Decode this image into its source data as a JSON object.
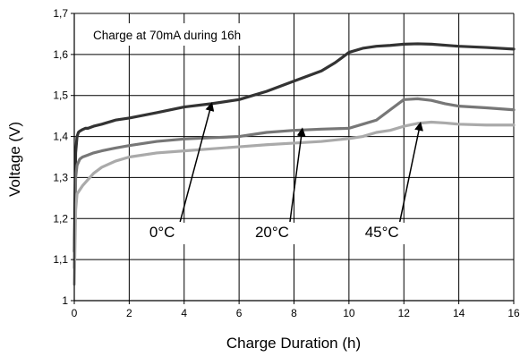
{
  "chart_data": {
    "type": "line",
    "xlabel": "Charge Duration  (h)",
    "ylabel": "Voltage (V)",
    "xlim": [
      0,
      16
    ],
    "ylim": [
      1.0,
      1.7
    ],
    "xticks": [
      0,
      2,
      4,
      6,
      8,
      10,
      12,
      14,
      16
    ],
    "yticks": [
      1.0,
      1.1,
      1.2,
      1.3,
      1.4,
      1.5,
      1.6,
      1.7
    ],
    "xtick_labels": [
      "0",
      "2",
      "4",
      "6",
      "8",
      "10",
      "12",
      "14",
      "16"
    ],
    "ytick_labels": [
      "1",
      "1,1",
      "1,2",
      "1,3",
      "1,4",
      "1,5",
      "1,6",
      "1,7"
    ],
    "grid": true,
    "annotation_box": "Charge at 70mA during 16h",
    "series": [
      {
        "name": "0°C",
        "color": "#333333",
        "x": [
          0,
          0.05,
          0.1,
          0.15,
          0.2,
          0.3,
          0.4,
          0.5,
          0.7,
          1.0,
          1.5,
          2,
          3,
          4,
          5,
          6,
          6.5,
          7,
          8,
          9,
          9.5,
          10,
          10.5,
          11,
          11.5,
          12,
          12.5,
          13,
          14,
          15,
          16
        ],
        "y": [
          1.12,
          1.36,
          1.4,
          1.41,
          1.413,
          1.417,
          1.42,
          1.42,
          1.425,
          1.43,
          1.44,
          1.445,
          1.458,
          1.472,
          1.48,
          1.49,
          1.5,
          1.51,
          1.535,
          1.56,
          1.58,
          1.605,
          1.615,
          1.62,
          1.622,
          1.625,
          1.626,
          1.625,
          1.62,
          1.617,
          1.613
        ]
      },
      {
        "name": "20°C",
        "color": "#777777",
        "x": [
          0,
          0.05,
          0.1,
          0.2,
          0.3,
          0.5,
          0.7,
          1.0,
          1.5,
          2,
          3,
          4,
          5,
          6,
          7,
          8,
          9,
          10,
          10.5,
          11,
          11.5,
          12,
          12.5,
          13,
          13.5,
          14,
          15,
          16
        ],
        "y": [
          1.08,
          1.3,
          1.33,
          1.345,
          1.35,
          1.355,
          1.36,
          1.365,
          1.372,
          1.378,
          1.388,
          1.394,
          1.397,
          1.4,
          1.41,
          1.415,
          1.418,
          1.42,
          1.43,
          1.44,
          1.465,
          1.49,
          1.492,
          1.488,
          1.48,
          1.474,
          1.47,
          1.465
        ]
      },
      {
        "name": "45°C",
        "color": "#aaaaaa",
        "x": [
          0,
          0.05,
          0.1,
          0.2,
          0.3,
          0.5,
          0.7,
          1.0,
          1.5,
          2,
          3,
          4,
          5,
          6,
          7,
          8,
          9,
          10,
          10.5,
          11,
          11.5,
          12,
          12.5,
          13,
          13.5,
          14,
          15,
          16
        ],
        "y": [
          1.04,
          1.22,
          1.26,
          1.27,
          1.28,
          1.295,
          1.31,
          1.325,
          1.34,
          1.35,
          1.36,
          1.365,
          1.37,
          1.375,
          1.38,
          1.384,
          1.388,
          1.395,
          1.4,
          1.41,
          1.415,
          1.425,
          1.432,
          1.435,
          1.433,
          1.43,
          1.428,
          1.428
        ]
      }
    ],
    "labels": [
      {
        "text": "0°C",
        "x": 3.2,
        "y": 1.155,
        "arrow_to": [
          5.0,
          1.48
        ]
      },
      {
        "text": "20°C",
        "x": 7.2,
        "y": 1.155,
        "arrow_to": [
          8.3,
          1.418
        ]
      },
      {
        "text": "45°C",
        "x": 11.2,
        "y": 1.155,
        "arrow_to": [
          12.6,
          1.432
        ]
      }
    ]
  }
}
